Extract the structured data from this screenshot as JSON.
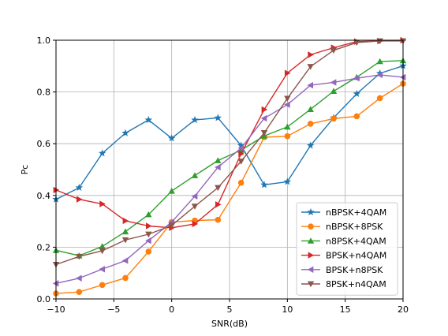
{
  "chart_data": {
    "type": "line",
    "xlabel": "SNR(dB)",
    "ylabel": "Pc",
    "xlim": [
      -10,
      20
    ],
    "ylim": [
      0.0,
      1.0
    ],
    "x_ticks": [
      "−10",
      "−5",
      "0",
      "5",
      "10",
      "15",
      "20"
    ],
    "y_ticks": [
      "0.0",
      "0.2",
      "0.4",
      "0.6",
      "0.8",
      "1.0"
    ],
    "grid": true,
    "legend_position": "lower-right",
    "x": [
      -10,
      -8,
      -6,
      -4,
      -2,
      0,
      2,
      4,
      6,
      8,
      10,
      12,
      14,
      16,
      18,
      20
    ],
    "series": [
      {
        "name": "nBPSK+4QAM",
        "marker": "star",
        "color": "#1f77b4",
        "values": [
          0.385,
          0.43,
          0.563,
          0.641,
          0.692,
          0.621,
          0.692,
          0.7,
          0.593,
          0.441,
          0.453,
          0.593,
          0.7,
          0.793,
          0.872,
          0.901
        ]
      },
      {
        "name": "nBPSK+8PSK",
        "marker": "circle",
        "color": "#ff7f0e",
        "values": [
          0.021,
          0.027,
          0.054,
          0.081,
          0.183,
          0.297,
          0.303,
          0.306,
          0.449,
          0.625,
          0.629,
          0.677,
          0.697,
          0.706,
          0.776,
          0.832
        ]
      },
      {
        "name": "n8PSK+4QAM",
        "marker": "triangle-up",
        "color": "#2ca02c",
        "values": [
          0.188,
          0.167,
          0.203,
          0.26,
          0.326,
          0.417,
          0.477,
          0.535,
          0.575,
          0.63,
          0.665,
          0.733,
          0.803,
          0.857,
          0.918,
          0.921
        ]
      },
      {
        "name": "BPSK+n4QAM",
        "marker": "triangle-right",
        "color": "#d62728",
        "values": [
          0.421,
          0.385,
          0.367,
          0.302,
          0.282,
          0.275,
          0.29,
          0.365,
          0.561,
          0.732,
          0.873,
          0.944,
          0.971,
          0.995,
          0.997,
          1.0
        ]
      },
      {
        "name": "BPSK+n8PSK",
        "marker": "triangle-left",
        "color": "#9467bd",
        "values": [
          0.06,
          0.08,
          0.115,
          0.148,
          0.225,
          0.297,
          0.397,
          0.509,
          0.583,
          0.698,
          0.751,
          0.826,
          0.837,
          0.853,
          0.866,
          0.857
        ]
      },
      {
        "name": "8PSK+n4QAM",
        "marker": "triangle-down",
        "color": "#8c564b",
        "values": [
          0.133,
          0.164,
          0.186,
          0.228,
          0.25,
          0.284,
          0.358,
          0.43,
          0.532,
          0.642,
          0.775,
          0.898,
          0.961,
          0.991,
          0.997,
          0.997
        ]
      }
    ]
  }
}
